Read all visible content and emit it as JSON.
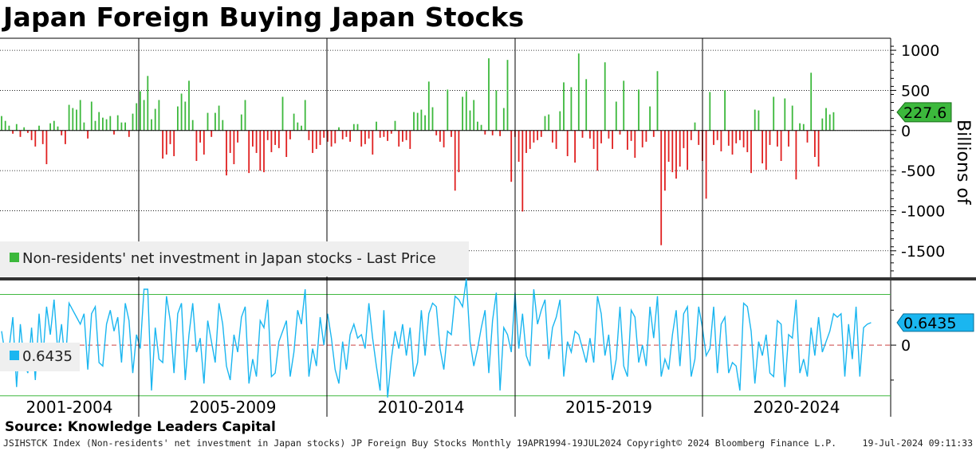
{
  "header": {
    "title": "Japan Foreign Buying Japan Stocks"
  },
  "colors": {
    "positive": "#3cb83c",
    "negative": "#e02020",
    "oscillator": "#1ab6f0",
    "band": "#40b840",
    "zero_line": "#cc4444"
  },
  "chart_data": [
    {
      "type": "bar",
      "title": "Japan Foreign Buying Japan Stocks",
      "series_name": "Non-residents' net investment in Japan stocks - Last Price",
      "legend_label": "Non-residents' net investment in Japan stocks - Last Price",
      "ylabel": "Billions of",
      "ylim": [
        -1850,
        1150
      ],
      "yticks": [
        1000,
        500,
        0,
        -500,
        -1000,
        -1500
      ],
      "ytick_labels": [
        "1000",
        "500",
        "0",
        "-500",
        "-1000",
        "-1500"
      ],
      "last_value": 227.6,
      "last_value_label": "227.6",
      "frequency": "Monthly",
      "start": "2001-01",
      "values": [
        180,
        120,
        60,
        -40,
        80,
        -80,
        40,
        -30,
        -120,
        -200,
        60,
        -170,
        -420,
        90,
        120,
        50,
        -60,
        -170,
        320,
        280,
        260,
        380,
        100,
        -100,
        360,
        120,
        230,
        160,
        140,
        180,
        -50,
        190,
        100,
        100,
        -80,
        210,
        340,
        490,
        380,
        680,
        140,
        270,
        380,
        -350,
        -300,
        -170,
        -320,
        300,
        460,
        360,
        620,
        130,
        -380,
        -150,
        -300,
        220,
        -80,
        220,
        310,
        130,
        -560,
        -280,
        -420,
        -150,
        200,
        380,
        -530,
        -200,
        -280,
        -500,
        -520,
        -120,
        -270,
        -180,
        -220,
        420,
        -330,
        -110,
        210,
        100,
        60,
        380,
        -120,
        -280,
        -230,
        -180,
        -90,
        -140,
        -200,
        -160,
        40,
        -110,
        -80,
        -140,
        80,
        80,
        -200,
        -170,
        -100,
        -300,
        110,
        -90,
        -80,
        -130,
        -40,
        120,
        -200,
        -140,
        -120,
        -230,
        230,
        220,
        260,
        190,
        610,
        290,
        -60,
        -140,
        -210,
        510,
        -80,
        -750,
        -520,
        420,
        490,
        250,
        380,
        110,
        70,
        -50,
        900,
        -60,
        500,
        -70,
        280,
        880,
        -640,
        -80,
        -390,
        -1010,
        -280,
        -230,
        -150,
        -120,
        -80,
        180,
        200,
        -150,
        -230,
        240,
        600,
        -320,
        540,
        -400,
        960,
        -90,
        640,
        -100,
        -230,
        -500,
        -160,
        850,
        -100,
        -230,
        360,
        -50,
        620,
        -240,
        -130,
        -340,
        510,
        -210,
        -140,
        300,
        -80,
        740,
        -1430,
        -750,
        -390,
        -520,
        -600,
        -450,
        -220,
        -490,
        -120,
        100,
        -180,
        -380,
        -850,
        480,
        -180,
        -120,
        -260,
        500,
        -190,
        -300,
        -160,
        -120,
        -210,
        -270,
        -530,
        260,
        250,
        -410,
        -490,
        -180,
        420,
        -200,
        -380,
        400,
        -200,
        310,
        -610,
        90,
        80,
        -150,
        720,
        -330,
        -450,
        150,
        280,
        200,
        227.6
      ]
    },
    {
      "type": "line",
      "series_name": "Oscillator",
      "legend_label": "0.6435",
      "ylim": [
        -2.05,
        1.85
      ],
      "yticks": [
        0
      ],
      "ytick_labels": [
        "0"
      ],
      "bands": [
        1.45,
        -1.45
      ],
      "last_value": 0.6435,
      "last_value_label": "0.6435",
      "start": "2001-01",
      "values": [
        0.4,
        -0.3,
        -0.1,
        0.8,
        -1.2,
        0.6,
        -0.5,
        -0.8,
        0.5,
        -1.0,
        0.9,
        -0.4,
        1.1,
        0.3,
        1.3,
        -0.2,
        0.6,
        -0.6,
        1.2,
        1.0,
        0.8,
        0.6,
        0.9,
        -0.7,
        0.9,
        1.1,
        -0.5,
        -0.6,
        0.6,
        1.0,
        0.4,
        0.8,
        -0.5,
        1.2,
        0.7,
        -0.8,
        0.3,
        -0.1,
        1.6,
        1.6,
        -1.3,
        0.5,
        -0.4,
        -0.5,
        1.4,
        0.7,
        -0.8,
        0.9,
        1.2,
        -1.0,
        0.3,
        1.2,
        -0.2,
        0.2,
        -1.1,
        0.7,
        0.1,
        -0.5,
        1.2,
        0.6,
        -0.6,
        -1.0,
        0.3,
        -0.2,
        0.8,
        1.1,
        -1.1,
        -0.4,
        -0.9,
        0.7,
        0.5,
        1.3,
        -0.9,
        -0.8,
        0.1,
        0.4,
        0.7,
        -0.9,
        -0.2,
        1.0,
        0.6,
        1.6,
        -0.9,
        -0.1,
        -0.6,
        0.8,
        0.0,
        0.9,
        0.2,
        -0.7,
        -1.1,
        0.1,
        -0.7,
        0.3,
        0.6,
        0.2,
        0.3,
        -0.1,
        1.2,
        0.2,
        -0.6,
        -1.3,
        1.0,
        -1.5,
        -0.4,
        0.4,
        -0.1,
        0.6,
        -0.3,
        0.5,
        -0.9,
        -0.5,
        1.0,
        -0.3,
        0.9,
        1.2,
        1.1,
        -0.1,
        -0.7,
        0.4,
        0.3,
        1.4,
        1.3,
        1.1,
        1.9,
        0.1,
        -0.6,
        -0.1,
        0.5,
        1.0,
        -0.8,
        0.7,
        1.5,
        -1.3,
        0.5,
        0.3,
        -0.2,
        1.5,
        -0.1,
        0.9,
        -0.3,
        -0.6,
        1.6,
        0.6,
        1.0,
        1.3,
        -0.4,
        0.5,
        0.8,
        1.3,
        -0.9,
        0.1,
        -0.2,
        0.4,
        0.3,
        -0.1,
        -0.5,
        0.2,
        -0.5,
        1.4,
        0.9,
        -0.3,
        0.3,
        -1.0,
        -0.4,
        1.1,
        -0.6,
        -0.9,
        1.0,
        0.8,
        -0.5,
        0.0,
        -0.6,
        1.1,
        0.2,
        1.4,
        -0.9,
        -0.4,
        -0.7,
        0.3,
        1.0,
        -0.6,
        0.9,
        1.1,
        -0.9,
        -0.4,
        1.1,
        0.5,
        -0.3,
        -0.1,
        1.1,
        -0.8,
        0.6,
        0.8,
        -0.8,
        -0.5,
        -0.6,
        -1.3,
        1.2,
        1.1,
        0.4,
        -1.1,
        0.1,
        -0.3,
        0.3,
        -0.8,
        -0.9,
        0.7,
        0.6,
        -1.2,
        0.3,
        0.2,
        1.3,
        -0.8,
        -0.4,
        -0.9,
        0.5,
        -0.3,
        0.8,
        -0.2,
        0.1,
        0.4,
        0.9,
        0.8,
        0.9,
        -0.9,
        0.6,
        -0.4,
        1.1,
        -0.9,
        0.5,
        0.6,
        0.6435
      ]
    }
  ],
  "x_axis": {
    "periods": [
      "2001-2004",
      "2005-2009",
      "2010-2014",
      "2015-2019",
      "2020-2024"
    ]
  },
  "footer": {
    "source": "Source: Knowledge Leaders Capital",
    "ticker": "JSIHSTCK Index (Non-residents' net investment in Japan stocks) JP Foreign Buy Stocks  Monthly 19APR1994-19JUL2024",
    "copyright": "Copyright© 2024 Bloomberg Finance L.P.",
    "timestamp": "19-Jul-2024 09:11:33"
  }
}
